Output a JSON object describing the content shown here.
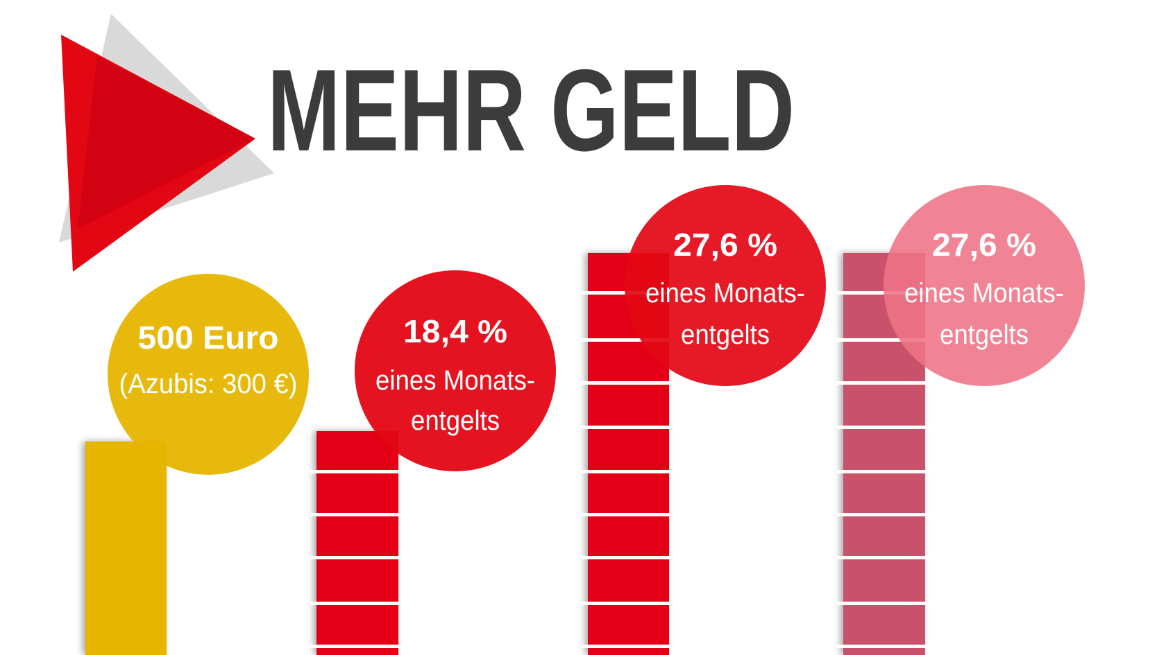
{
  "title": "MEHR GELD",
  "items": [
    {
      "headline": "500 Euro",
      "lines": [
        "(Azubis: 300 €)"
      ]
    },
    {
      "headline": "18,4 %",
      "lines": [
        "eines Monats-",
        "entgelts"
      ]
    },
    {
      "headline": "27,6 %",
      "lines": [
        "eines Monats-",
        "entgelts"
      ]
    },
    {
      "headline": "27,6 %",
      "lines": [
        "eines Monats-",
        "entgelts"
      ]
    }
  ]
}
